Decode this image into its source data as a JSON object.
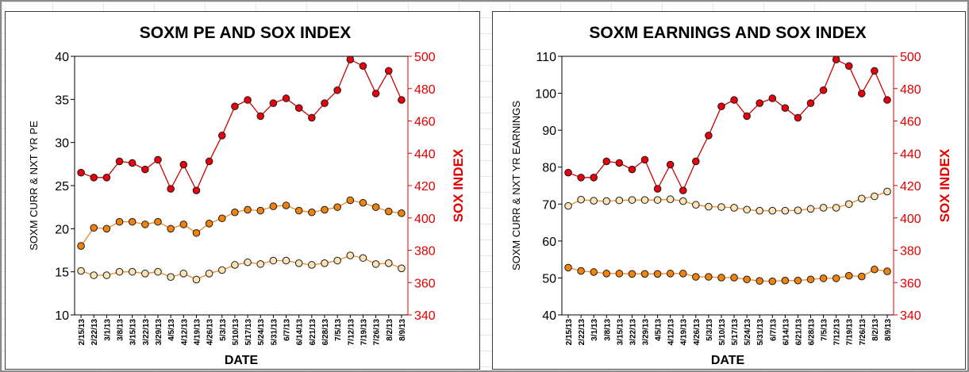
{
  "chart_data": [
    {
      "type": "line",
      "title": "SOXM PE AND SOX INDEX",
      "xlabel": "DATE",
      "ylabel": "SOXM CURR & NXT YR PE",
      "y2label": "SOX INDEX",
      "categories": [
        "2/15/13",
        "2/22/13",
        "3/1/13",
        "3/8/13",
        "3/15/13",
        "3/22/13",
        "3/29/13",
        "4/5/13",
        "4/12/13",
        "4/19/13",
        "4/26/13",
        "5/3/13",
        "5/10/13",
        "5/17/13",
        "5/24/13",
        "5/31/13",
        "6/7/13",
        "6/14/13",
        "6/21/13",
        "6/28/13",
        "7/5/13",
        "7/12/13",
        "7/19/13",
        "7/26/13",
        "8/2/13",
        "8/9/13"
      ],
      "ylim": [
        10,
        40
      ],
      "yticks": [
        10,
        15,
        20,
        25,
        30,
        35,
        40
      ],
      "y2lim": [
        340,
        500
      ],
      "y2ticks": [
        340,
        360,
        380,
        400,
        420,
        440,
        460,
        480,
        500
      ],
      "grid": false,
      "series": [
        {
          "axis": "y2",
          "color": "#cc0000",
          "fill": "#e8000d",
          "values": [
            428,
            425,
            425,
            435,
            434,
            430,
            436,
            418,
            433,
            417,
            435,
            451,
            469,
            473,
            463,
            471,
            474,
            468,
            462,
            471,
            479,
            498,
            494,
            477,
            491,
            473
          ]
        },
        {
          "axis": "y",
          "color": "#f08a24",
          "fill": "#f0820f",
          "values": [
            18.0,
            20.1,
            20.0,
            20.8,
            20.8,
            20.5,
            20.8,
            20.0,
            20.5,
            19.5,
            20.6,
            21.2,
            21.9,
            22.2,
            22.1,
            22.6,
            22.7,
            22.1,
            21.9,
            22.2,
            22.5,
            23.3,
            23.0,
            22.5,
            22.0,
            21.8
          ]
        },
        {
          "axis": "y",
          "color": "#f08a24",
          "fill": "#fce3b8",
          "values": [
            15.1,
            14.6,
            14.6,
            15.0,
            15.0,
            14.8,
            15.0,
            14.4,
            14.8,
            14.1,
            14.8,
            15.2,
            15.8,
            16.1,
            15.9,
            16.3,
            16.3,
            16.0,
            15.8,
            16.0,
            16.3,
            16.9,
            16.6,
            15.9,
            16.0,
            15.4
          ]
        }
      ]
    },
    {
      "type": "line",
      "title": "SOXM EARNINGS AND SOX INDEX",
      "xlabel": "DATE",
      "ylabel": "SOXM CURR & NXT YR EARNINGS",
      "y2label": "SOX INDEX",
      "categories": [
        "2/15/13",
        "2/22/13",
        "3/1/13",
        "3/8/13",
        "3/15/13",
        "3/22/13",
        "3/29/13",
        "4/5/13",
        "4/12/13",
        "4/19/13",
        "4/26/13",
        "5/3/13",
        "5/10/13",
        "5/17/13",
        "5/24/13",
        "5/31/13",
        "6/7/13",
        "6/14/13",
        "6/21/13",
        "6/28/13",
        "7/5/13",
        "7/12/13",
        "7/19/13",
        "7/26/13",
        "8/2/13",
        "8/9/13"
      ],
      "ylim": [
        40,
        110
      ],
      "yticks": [
        40,
        50,
        60,
        70,
        80,
        90,
        100,
        110
      ],
      "y2lim": [
        340,
        500
      ],
      "y2ticks": [
        340,
        360,
        380,
        400,
        420,
        440,
        460,
        480,
        500
      ],
      "grid": false,
      "series": [
        {
          "axis": "y2",
          "color": "#cc0000",
          "fill": "#e8000d",
          "values": [
            428,
            425,
            425,
            435,
            434,
            430,
            436,
            418,
            433,
            417,
            435,
            451,
            469,
            473,
            463,
            471,
            474,
            468,
            462,
            471,
            479,
            498,
            494,
            477,
            491,
            473
          ]
        },
        {
          "axis": "y",
          "color": "#f08a24",
          "fill": "#fce3b8",
          "values": [
            69.5,
            71.2,
            70.9,
            70.8,
            71.0,
            71.1,
            71.1,
            71.1,
            71.3,
            70.8,
            69.8,
            69.3,
            69.2,
            69.0,
            68.5,
            68.2,
            68.2,
            68.2,
            68.3,
            68.7,
            69.0,
            69.0,
            70.0,
            71.5,
            72.1,
            73.4
          ]
        },
        {
          "axis": "y",
          "color": "#f08a24",
          "fill": "#f0820f",
          "values": [
            52.8,
            51.9,
            51.6,
            51.2,
            51.2,
            51.1,
            51.1,
            51.1,
            51.2,
            51.2,
            50.3,
            50.3,
            50.1,
            50.1,
            49.6,
            49.2,
            49.1,
            49.3,
            49.3,
            49.6,
            49.9,
            49.9,
            50.6,
            50.4,
            52.3,
            51.8
          ]
        }
      ]
    }
  ]
}
